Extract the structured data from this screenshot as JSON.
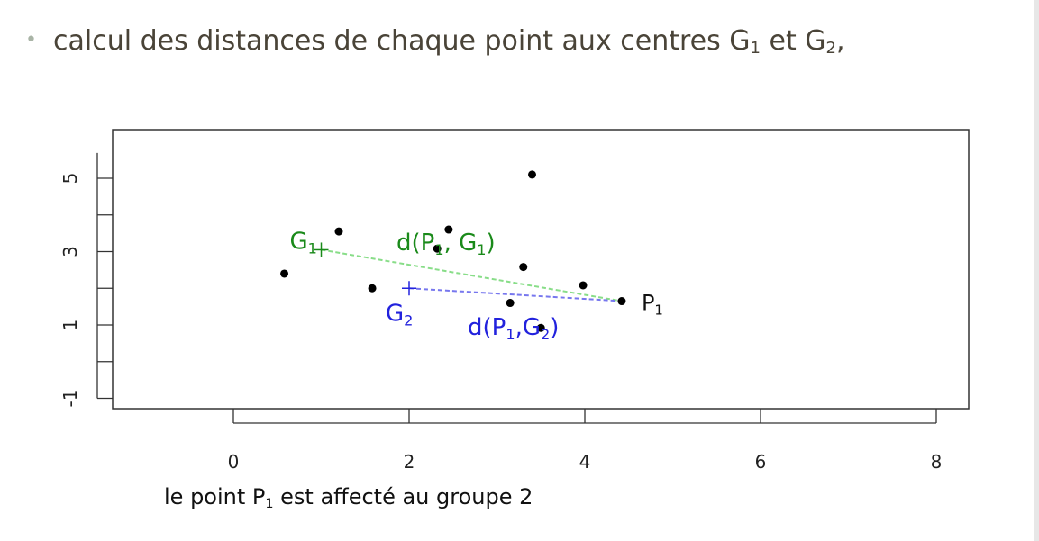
{
  "heading": {
    "bullet": "•",
    "text": "calcul des distances de chaque point aux centres G",
    "g1_sub": "1",
    "mid": " et G",
    "g2_sub": "2",
    "tail": ","
  },
  "caption": {
    "prefix": "le point P",
    "sub": "1",
    "suffix": " est affecté au groupe 2"
  },
  "chart_data": {
    "type": "scatter",
    "xlim": [
      -1.2,
      8.2
    ],
    "ylim": [
      -1.3,
      5.8
    ],
    "x_ticks": [
      0,
      2,
      4,
      6,
      8
    ],
    "y_ticks": [
      -1,
      1,
      3,
      5
    ],
    "y_minor_ticks": [
      0,
      2,
      4
    ],
    "points": [
      {
        "x": 0.58,
        "y": 2.4
      },
      {
        "x": 1.2,
        "y": 3.55
      },
      {
        "x": 1.58,
        "y": 2.0
      },
      {
        "x": 2.32,
        "y": 3.08
      },
      {
        "x": 2.45,
        "y": 3.6
      },
      {
        "x": 3.15,
        "y": 1.6
      },
      {
        "x": 3.3,
        "y": 2.58
      },
      {
        "x": 3.4,
        "y": 5.1
      },
      {
        "x": 3.5,
        "y": 0.92
      },
      {
        "x": 3.98,
        "y": 2.08
      },
      {
        "x": 4.42,
        "y": 1.65
      }
    ],
    "centers": [
      {
        "id": "G1",
        "x": 1.0,
        "y": 3.05,
        "label": "G",
        "sub": "1",
        "color": "#1a8a1a"
      },
      {
        "id": "G2",
        "x": 2.0,
        "y": 2.0,
        "label": "G",
        "sub": "2",
        "color": "#2222dd"
      }
    ],
    "p1": {
      "x": 4.42,
      "y": 1.65,
      "label": "P",
      "sub": "1"
    },
    "distance_lines": [
      {
        "from": "G1",
        "color": "#88dd88",
        "label": "d(P",
        "label_sub": "1",
        "label_rest": ", G",
        "label_rest_sub": "1",
        "label_end": ")",
        "text_color": "#1a8a1a"
      },
      {
        "from": "G2",
        "color": "#7777ee",
        "label": "d(P",
        "label_sub": "1",
        "label_rest": ",G",
        "label_rest_sub": "2",
        "label_end": ")",
        "text_color": "#2222dd"
      }
    ],
    "grid": false
  }
}
